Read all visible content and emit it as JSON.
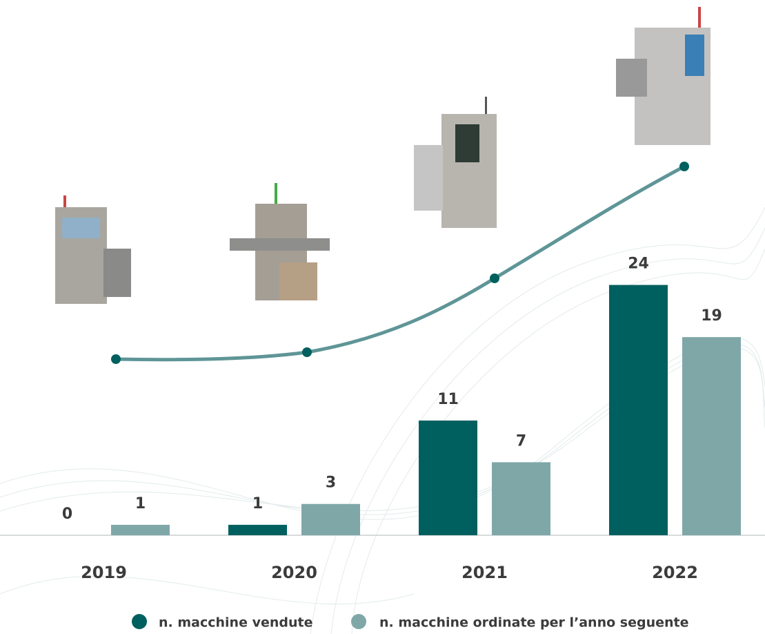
{
  "chart_data": {
    "type": "bar",
    "categories": [
      "2019",
      "2020",
      "2021",
      "2022"
    ],
    "series": [
      {
        "name": "n. macchine vendute",
        "color": "#00605f",
        "values": [
          0,
          1,
          11,
          24
        ]
      },
      {
        "name": "n. macchine ordinate per l’anno seguente",
        "color": "#7fa7a8",
        "values": [
          1,
          3,
          7,
          19
        ]
      }
    ]
  }
}
